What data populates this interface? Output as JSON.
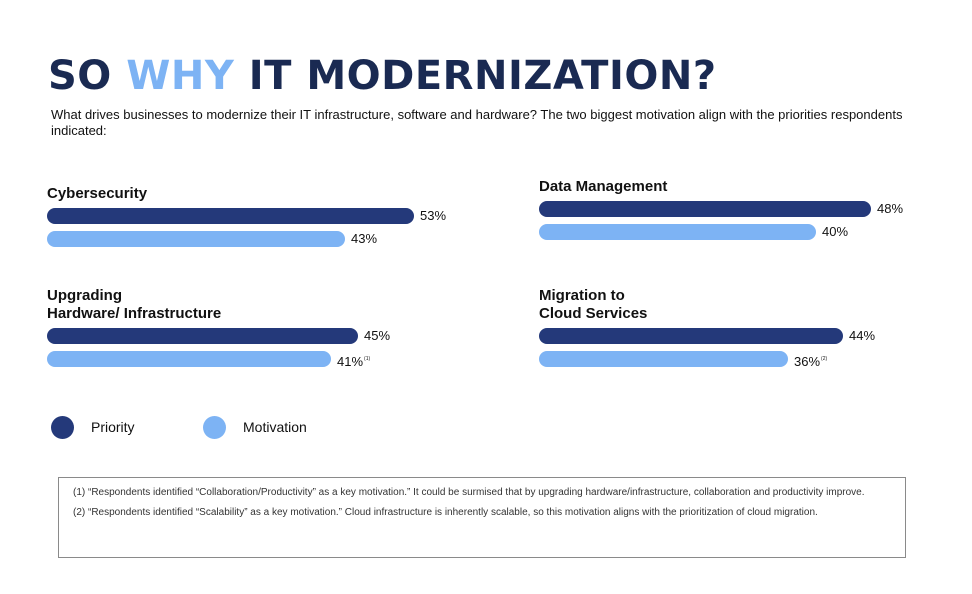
{
  "header": {
    "title_part1": "SO ",
    "title_accent": "WHY",
    "title_part2": " IT MODERNIZATION?",
    "subtitle": "What drives businesses to modernize their IT infrastructure, software and hardware? The two biggest motivation align with the priorities respondents indicated:"
  },
  "colors": {
    "priority": "#24397a",
    "motivation": "#7db3f4",
    "title": "#1a2a52"
  },
  "chart_data": {
    "type": "bar",
    "orientation": "horizontal",
    "categories": [
      "Cybersecurity",
      "Data Management",
      "Upgrading Hardware/ Infrastructure",
      "Migration to Cloud Services"
    ],
    "series": [
      {
        "name": "Priority",
        "values": [
          53,
          48,
          45,
          44
        ]
      },
      {
        "name": "Motivation",
        "values": [
          43,
          40,
          41,
          36
        ]
      }
    ],
    "value_labels": {
      "Priority": [
        "53%",
        "48%",
        "45%",
        "44%"
      ],
      "Motivation": [
        "43%",
        "40%",
        "41%",
        "36%"
      ]
    },
    "footnote_markers": {
      "Motivation": [
        "",
        "",
        "(1)",
        "(2)"
      ]
    },
    "unit": "%",
    "legend": "bottom-left",
    "grid": false
  },
  "groups": [
    {
      "title_lines": [
        "Cybersecurity"
      ]
    },
    {
      "title_lines": [
        "Data Management"
      ]
    },
    {
      "title_lines": [
        "Upgrading",
        "Hardware/ Infrastructure"
      ]
    },
    {
      "title_lines": [
        "Migration to",
        "Cloud Services"
      ]
    }
  ],
  "legend": {
    "priority_label": "Priority",
    "motivation_label": "Motivation"
  },
  "notes": {
    "note1": "(1) “Respondents identified “Collaboration/Productivity” as a key motivation.” It could be surmised that by upgrading hardware/infrastructure, collaboration and productivity improve.",
    "note2": "(2) “Respondents identified “Scalability” as a key motivation.” Cloud infrastructure is inherently scalable, so this motivation aligns with the prioritization of cloud migration."
  }
}
